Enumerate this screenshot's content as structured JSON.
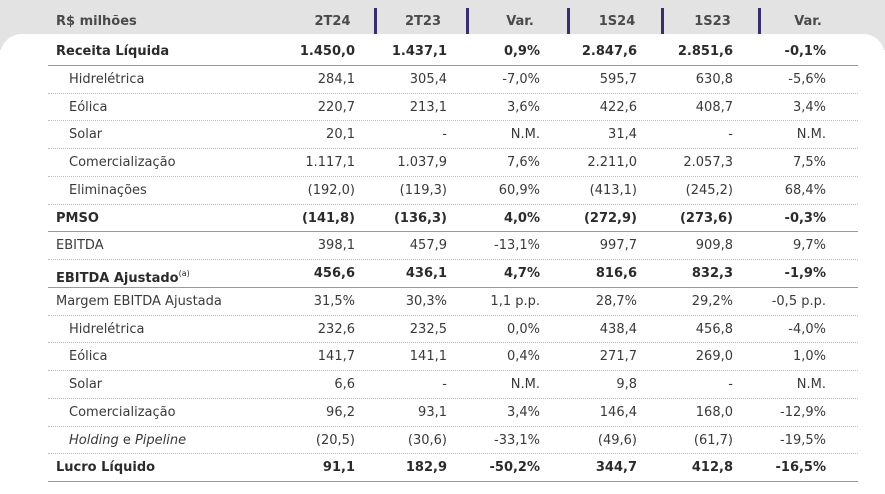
{
  "header": {
    "label": "R$ milhões",
    "columns": [
      "2T24",
      "2T23",
      "Var.",
      "1S24",
      "1S23",
      "Var."
    ]
  },
  "rows": [
    {
      "label": "Receita Líquida",
      "bold": true,
      "indent": false,
      "values": [
        "1.450,0",
        "1.437,1",
        "0,9%",
        "2.847,6",
        "2.851,6",
        "-0,1%"
      ]
    },
    {
      "label": "Hidrelétrica",
      "bold": false,
      "indent": true,
      "values": [
        "284,1",
        "305,4",
        "-7,0%",
        "595,7",
        "630,8",
        "-5,6%"
      ]
    },
    {
      "label": "Eólica",
      "bold": false,
      "indent": true,
      "values": [
        "220,7",
        "213,1",
        "3,6%",
        "422,6",
        "408,7",
        "3,4%"
      ]
    },
    {
      "label": "Solar",
      "bold": false,
      "indent": true,
      "values": [
        "20,1",
        "-",
        "N.M.",
        "31,4",
        "-",
        "N.M."
      ]
    },
    {
      "label": "Comercialização",
      "bold": false,
      "indent": true,
      "values": [
        "1.117,1",
        "1.037,9",
        "7,6%",
        "2.211,0",
        "2.057,3",
        "7,5%"
      ]
    },
    {
      "label": "Eliminações",
      "bold": false,
      "indent": true,
      "values": [
        "(192,0)",
        "(119,3)",
        "60,9%",
        "(413,1)",
        "(245,2)",
        "68,4%"
      ]
    },
    {
      "label": "PMSO",
      "bold": true,
      "indent": false,
      "values": [
        "(141,8)",
        "(136,3)",
        "4,0%",
        "(272,9)",
        "(273,6)",
        "-0,3%"
      ]
    },
    {
      "label": "EBITDA",
      "bold": false,
      "indent": false,
      "values": [
        "398,1",
        "457,9",
        "-13,1%",
        "997,7",
        "909,8",
        "9,7%"
      ]
    },
    {
      "label": "EBITDA Ajustado",
      "sup": "(a)",
      "bold": true,
      "indent": false,
      "values": [
        "456,6",
        "436,1",
        "4,7%",
        "816,6",
        "832,3",
        "-1,9%"
      ]
    },
    {
      "label": "Margem EBITDA Ajustada",
      "bold": false,
      "indent": false,
      "values": [
        "31,5%",
        "30,3%",
        "1,1 p.p.",
        "28,7%",
        "29,2%",
        "-0,5 p.p."
      ]
    },
    {
      "label": "Hidrelétrica",
      "bold": false,
      "indent": true,
      "values": [
        "232,6",
        "232,5",
        "0,0%",
        "438,4",
        "456,8",
        "-4,0%"
      ]
    },
    {
      "label": "Eólica",
      "bold": false,
      "indent": true,
      "values": [
        "141,7",
        "141,1",
        "0,4%",
        "271,7",
        "269,0",
        "1,0%"
      ]
    },
    {
      "label": "Solar",
      "bold": false,
      "indent": true,
      "values": [
        "6,6",
        "-",
        "N.M.",
        "9,8",
        "-",
        "N.M."
      ]
    },
    {
      "label": "Comercialização",
      "bold": false,
      "indent": true,
      "values": [
        "96,2",
        "93,1",
        "3,4%",
        "146,4",
        "168,0",
        "-12,9%"
      ]
    },
    {
      "label": "Holding e Pipeline",
      "bold": false,
      "indent": true,
      "italic_parts": [
        "Holding",
        "Pipeline"
      ],
      "values": [
        "(20,5)",
        "(30,6)",
        "-33,1%",
        "(49,6)",
        "(61,7)",
        "-19,5%"
      ]
    },
    {
      "label": "Lucro Líquido",
      "bold": true,
      "indent": false,
      "values": [
        "91,1",
        "182,9",
        "-50,2%",
        "344,7",
        "412,8",
        "-16,5%"
      ]
    }
  ],
  "colors": {
    "header_bg": "#e3e3e3",
    "divider": "#3a2f6e"
  }
}
